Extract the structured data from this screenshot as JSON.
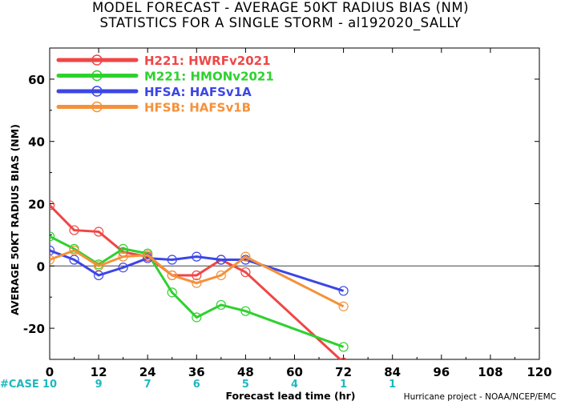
{
  "chart_data": {
    "type": "line",
    "title": "MODEL FORECAST - AVERAGE 50KT RADIUS BIAS (NM)",
    "subtitle": "STATISTICS FOR A SINGLE STORM - al192020_SALLY",
    "xlabel": "Forecast lead time (hr)",
    "ylabel": "AVERAGE 50KT RADIUS BIAS (NM)",
    "xlim": [
      0,
      120
    ],
    "ylim": [
      -30,
      70
    ],
    "xticks": [
      0,
      12,
      24,
      36,
      48,
      60,
      72,
      84,
      96,
      108,
      120
    ],
    "yticks": [
      -20,
      0,
      20,
      40,
      60
    ],
    "zero_line": true,
    "grid": false,
    "legend_position": "top-left",
    "series": [
      {
        "id": "H221",
        "name": "HWRFv2021",
        "color": "#f04646",
        "x": [
          0,
          6,
          12,
          18,
          24,
          30,
          36,
          42,
          48,
          72
        ],
        "y": [
          19.5,
          11.5,
          11,
          4.5,
          3,
          -3,
          -3,
          2,
          -2,
          -31
        ]
      },
      {
        "id": "M221",
        "name": "HMONv2021",
        "color": "#2ed12e",
        "x": [
          0,
          6,
          12,
          18,
          24,
          30,
          36,
          42,
          48,
          72
        ],
        "y": [
          9.5,
          5.5,
          0.5,
          5.5,
          4,
          -8.5,
          -16.5,
          -12.5,
          -14.5,
          -26
        ]
      },
      {
        "id": "HFSA",
        "name": "HAFSv1A",
        "color": "#3c46e6",
        "x": [
          0,
          6,
          12,
          18,
          24,
          30,
          36,
          42,
          48,
          72
        ],
        "y": [
          5,
          2,
          -3,
          -0.5,
          2.5,
          2,
          3,
          2,
          2,
          -8
        ]
      },
      {
        "id": "HFSB",
        "name": "HAFSv1B",
        "color": "#f5913a",
        "x": [
          0,
          6,
          12,
          18,
          24,
          30,
          36,
          42,
          48,
          72
        ],
        "y": [
          2,
          5,
          0,
          3,
          3.5,
          -3,
          -5.5,
          -3,
          3,
          -13
        ]
      }
    ],
    "case_counts": {
      "label": "#CASE",
      "x": [
        0,
        12,
        24,
        36,
        48,
        60,
        72,
        84
      ],
      "values": [
        "10",
        "9",
        "7",
        "6",
        "5",
        "4",
        "1",
        "1"
      ],
      "color": "#1fb8c0"
    },
    "credit": "Hurricane project - NOAA/NCEP/EMC"
  }
}
